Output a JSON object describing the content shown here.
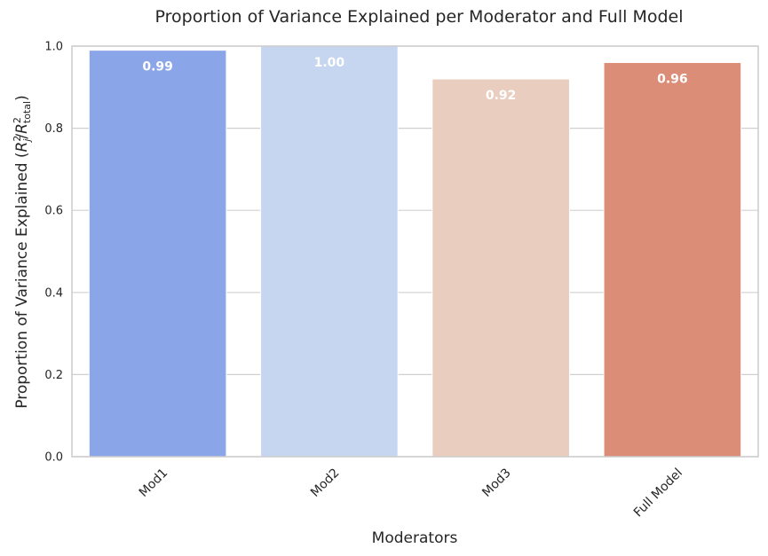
{
  "chart_data": {
    "type": "bar",
    "title": "Proportion of Variance Explained per Moderator and Full Model",
    "xlabel": "Moderators",
    "ylabel": "Proportion of Variance Explained (R²ⱼ/R²total)",
    "ylabel_main": "Proportion of Variance Explained (",
    "ylabel_r1": "R",
    "ylabel_sup1": "2",
    "ylabel_sub1": "j",
    "ylabel_slash": "/",
    "ylabel_r2": "R",
    "ylabel_sup2": "2",
    "ylabel_sub2": "total",
    "ylabel_close": ")",
    "categories": [
      "Mod1",
      "Mod2",
      "Mod3",
      "Full Model"
    ],
    "values": [
      0.99,
      1.0,
      0.92,
      0.96
    ],
    "value_labels": [
      "0.99",
      "1.00",
      "0.92",
      "0.96"
    ],
    "colors": [
      "#8aa6e8",
      "#c6d5f0",
      "#e9cdbf",
      "#dc8d77"
    ],
    "ylim": [
      0,
      1.0
    ],
    "yticks": [
      0.0,
      0.2,
      0.4,
      0.6,
      0.8,
      1.0
    ],
    "ytick_labels": [
      "0.0",
      "0.2",
      "0.4",
      "0.6",
      "0.8",
      "1.0"
    ],
    "grid": "horizontal",
    "x_tick_rotation": 45
  }
}
